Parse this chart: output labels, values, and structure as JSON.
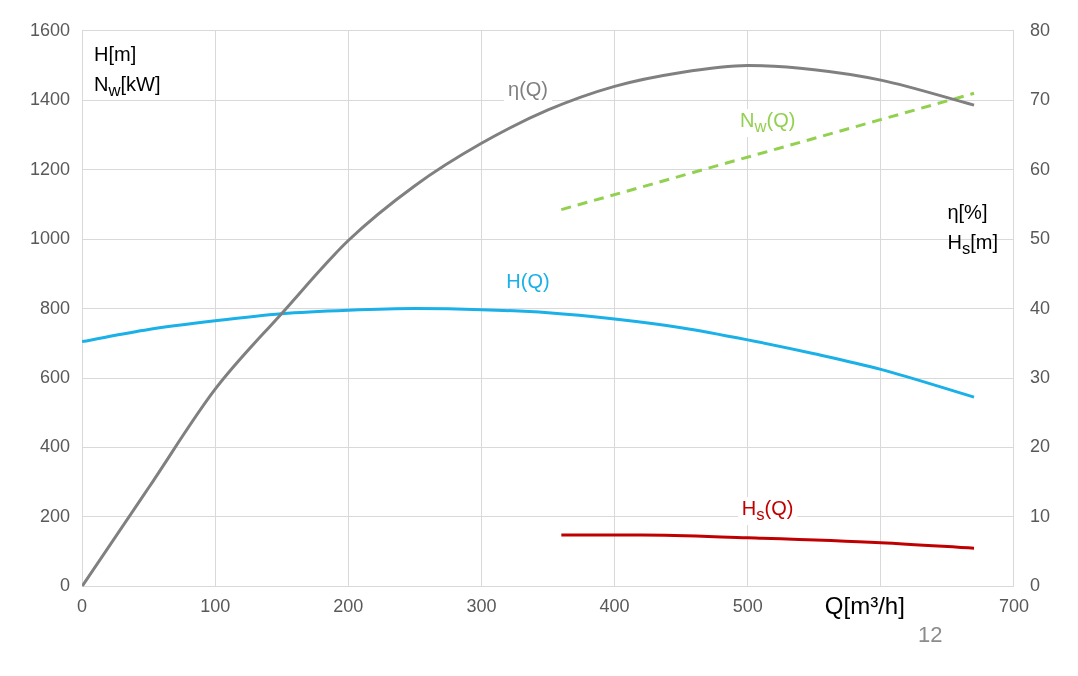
{
  "chart_data": {
    "type": "line",
    "xlabel": "Q[m³/h]",
    "ylabel": "H[m]\nN$_{w}$[kW]",
    "y2label": "η[%]\nH$_{s}$[m]",
    "xlim": [
      0,
      700
    ],
    "xticks": [
      0,
      100,
      200,
      300,
      400,
      500,
      {
        "value": 600,
        "label": null
      },
      700
    ],
    "ylim": [
      0,
      1600
    ],
    "yticks": [
      0,
      200,
      400,
      600,
      800,
      1000,
      1200,
      1400,
      1600
    ],
    "y2lim": [
      0,
      80
    ],
    "y2ticks": [
      0,
      10,
      20,
      30,
      40,
      50,
      60,
      70,
      80
    ],
    "grid": true,
    "legend": false,
    "marker": "none",
    "series": [
      {
        "name": "η(Q)",
        "color": "#808080",
        "axis": "y2",
        "line_style": "solid",
        "x": [
          0,
          50,
          100,
          150,
          200,
          250,
          300,
          350,
          400,
          450,
          500,
          550,
          600,
          670
        ],
        "values": [
          0,
          14.2,
          28.4,
          39.3,
          49.8,
          57.7,
          63.8,
          68.6,
          72,
          74,
          75,
          74.4,
          72.9,
          69.3
        ]
      },
      {
        "name": "H(Q)",
        "color": "#1ab0e8",
        "line_style": "solid",
        "x": [
          0,
          50,
          100,
          150,
          200,
          250,
          300,
          350,
          400,
          450,
          500,
          550,
          600,
          670
        ],
        "values": [
          705,
          740,
          765,
          785,
          795,
          800,
          797,
          788,
          770,
          745,
          710,
          670,
          625,
          545
        ]
      },
      {
        "name": "N$_{w}$(Q)",
        "color": "#92d050",
        "line_style": "dashed",
        "x": [
          360,
          670
        ],
        "values": [
          1085,
          1420
        ]
      },
      {
        "name": "H$_{s}$(Q)",
        "color": "#c00000",
        "axis": "y2",
        "line_style": "solid",
        "x": [
          360,
          420,
          500,
          600,
          670
        ],
        "values": [
          7.4,
          7.4,
          7.0,
          6.3,
          5.5
        ]
      }
    ],
    "annotations": [
      "12"
    ]
  }
}
